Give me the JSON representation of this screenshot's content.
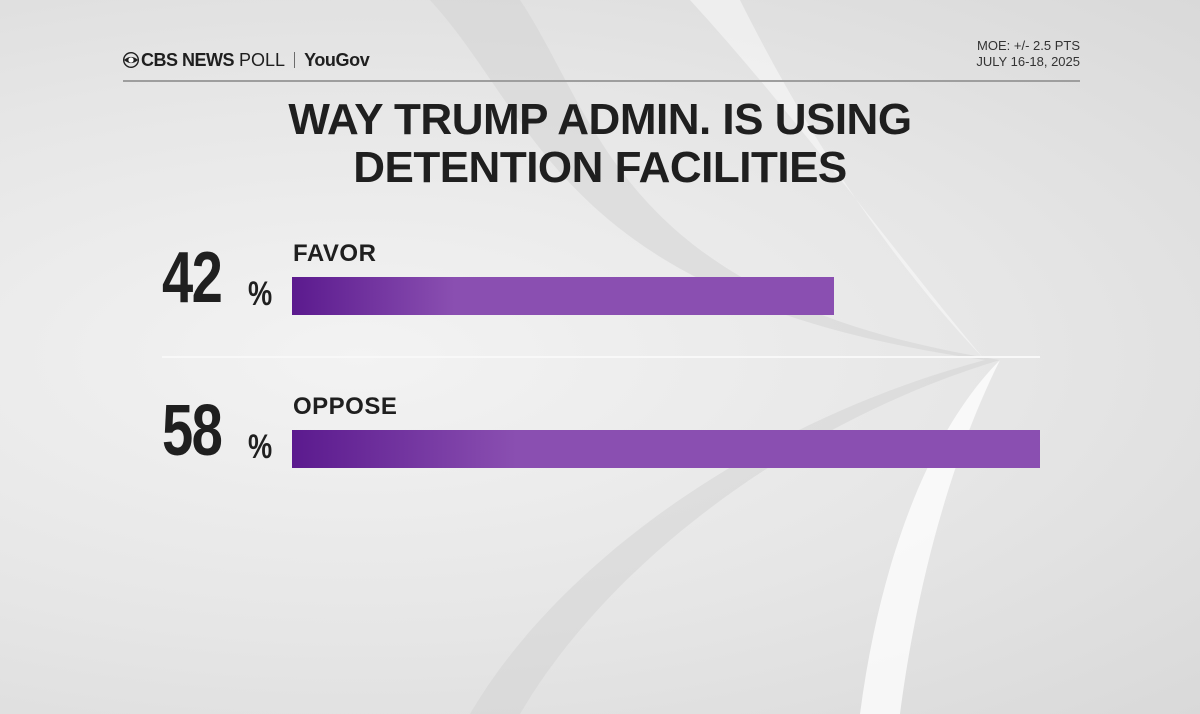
{
  "header": {
    "brand_cbs": "CBS NEWS",
    "brand_poll": "POLL",
    "brand_partner": "YouGov",
    "moe": "MOE: +/- 2.5 PTS",
    "dates": "JULY 16-18, 2025"
  },
  "chart_data": {
    "type": "bar",
    "title_lines": [
      "WAY TRUMP ADMIN. IS USING",
      "DETENTION FACILITIES"
    ],
    "categories": [
      "FAVOR",
      "OPPOSE"
    ],
    "values": [
      42,
      58
    ],
    "value_labels": [
      "42",
      "58"
    ],
    "unit": "%",
    "ylim": [
      0,
      58
    ],
    "bar_color": "#8a4fb1",
    "bar_color_dark": "#5b1a8e"
  }
}
